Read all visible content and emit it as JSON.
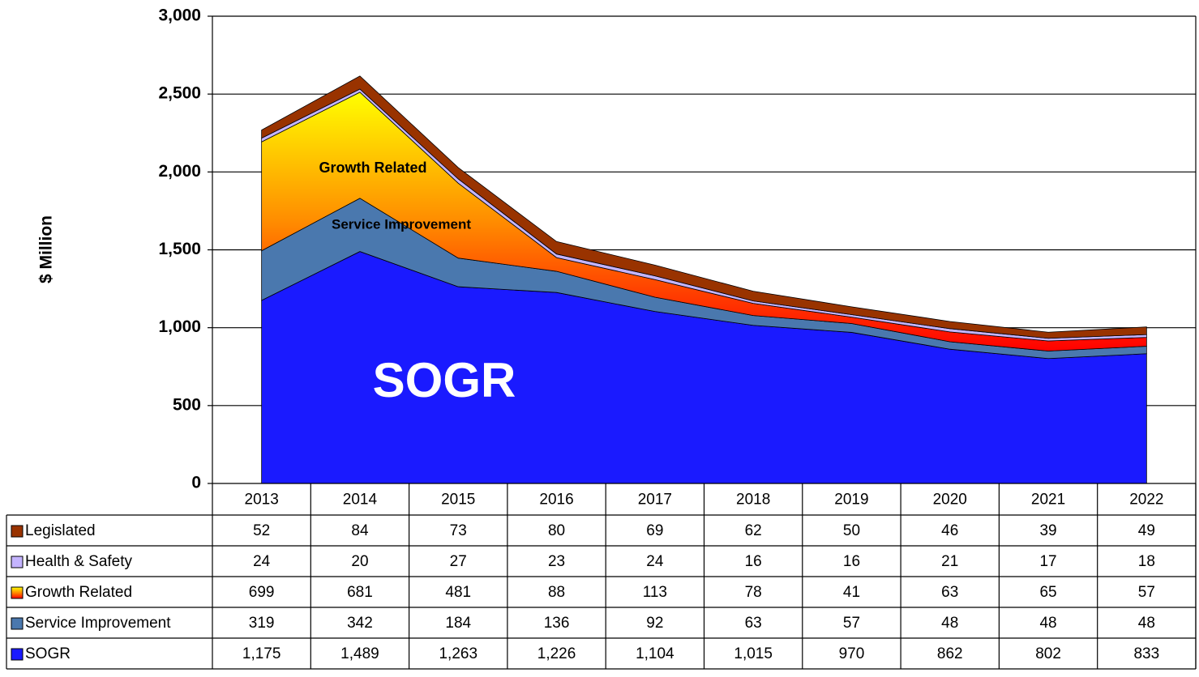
{
  "chart_data": {
    "type": "stacked-area",
    "ylabel": "$ Million",
    "categories": [
      "2013",
      "2014",
      "2015",
      "2016",
      "2017",
      "2018",
      "2019",
      "2020",
      "2021",
      "2022"
    ],
    "series": [
      {
        "name": "SOGR",
        "color": "#1a1aff",
        "values": [
          1175,
          1489,
          1263,
          1226,
          1104,
          1015,
          970,
          862,
          802,
          833
        ],
        "value_labels": [
          "1,175",
          "1,489",
          "1,263",
          "1,226",
          "1,104",
          "1,015",
          "970",
          "862",
          "802",
          "833"
        ]
      },
      {
        "name": "Service Improvement",
        "color": "#4a78ae",
        "values": [
          319,
          342,
          184,
          136,
          92,
          63,
          57,
          48,
          48,
          48
        ]
      },
      {
        "name": "Growth Related",
        "color": "#ff8c00",
        "values": [
          699,
          681,
          481,
          88,
          113,
          78,
          41,
          63,
          65,
          57
        ]
      },
      {
        "name": "Health & Safety",
        "color": "#c4b4ff",
        "values": [
          24,
          20,
          27,
          23,
          24,
          16,
          16,
          21,
          17,
          18
        ]
      },
      {
        "name": "Legislated",
        "color": "#993300",
        "values": [
          52,
          84,
          73,
          80,
          69,
          62,
          50,
          46,
          39,
          49
        ]
      }
    ],
    "ylim": [
      0,
      3000
    ],
    "yticks": [
      0,
      500,
      {
        "value": 1000,
        "label": "1,000"
      },
      {
        "value": 1500,
        "label": "1,500"
      },
      {
        "value": 2000,
        "label": "2,000"
      },
      {
        "value": 2500,
        "label": "2,500"
      },
      {
        "value": 3000,
        "label": "3,000"
      }
    ],
    "grid": true,
    "annotations": [
      "Growth Related",
      "Service Improvement",
      "SOGR"
    ]
  }
}
